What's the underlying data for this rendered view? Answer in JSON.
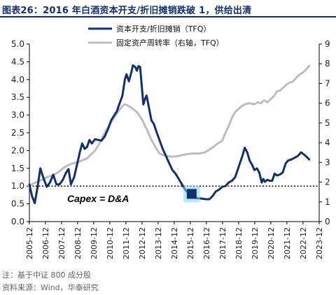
{
  "header": {
    "title": "图表26：2016 年白酒资本开支/折旧摊销跌破 1，供给出清"
  },
  "footer": {
    "note": "注：基于中证 800 成分股",
    "source": "资料来源：Wind，华泰研究"
  },
  "colors": {
    "title": "#12306b",
    "series_left": "#12306b",
    "series_right": "#bdbdbd",
    "highlight_fill": "#12306b",
    "highlight_glow": "#7fd3ff"
  },
  "chart_data": {
    "type": "line",
    "legend_position": "top-right",
    "grid": false,
    "annotation": "Capex = D&A",
    "reference_line": 1.0,
    "ylim_left": [
      0,
      5
    ],
    "ylim_right": [
      0,
      9
    ],
    "yticks_left": [
      "0.0",
      "0.5",
      "1.0",
      "1.5",
      "2.0",
      "2.5",
      "3.0",
      "3.5",
      "4.0",
      "4.5",
      "5.0"
    ],
    "yticks_right": [
      "0",
      "1",
      "2",
      "3",
      "4",
      "5",
      "6",
      "7",
      "8",
      "9"
    ],
    "xticks": [
      "2005-12",
      "2006-12",
      "2007-12",
      "2008-12",
      "2009-12",
      "2010-12",
      "2011-12",
      "2012-12",
      "2013-12",
      "2014-12",
      "2015-12",
      "2016-12",
      "2017-12",
      "2018-12",
      "2019-12",
      "2020-12",
      "2021-12",
      "2022-12",
      "2023-12"
    ],
    "highlight_point": {
      "x": 2016.0,
      "y": 0.78
    },
    "series": [
      {
        "name": "资本开支/折旧摊销（TFQ）",
        "axis": "left",
        "points": [
          [
            2005.92,
            1.05
          ],
          [
            2006.08,
            0.72
          ],
          [
            2006.25,
            0.52
          ],
          [
            2006.42,
            0.95
          ],
          [
            2006.6,
            1.5
          ],
          [
            2006.8,
            1.22
          ],
          [
            2007.0,
            0.98
          ],
          [
            2007.2,
            1.1
          ],
          [
            2007.4,
            1.32
          ],
          [
            2007.6,
            1.05
          ],
          [
            2007.8,
            1.05
          ],
          [
            2008.0,
            1.18
          ],
          [
            2008.2,
            1.38
          ],
          [
            2008.35,
            1.48
          ],
          [
            2008.5,
            1.05
          ],
          [
            2008.7,
            1.25
          ],
          [
            2008.85,
            1.55
          ],
          [
            2009.05,
            1.95
          ],
          [
            2009.2,
            2.2
          ],
          [
            2009.35,
            2.05
          ],
          [
            2009.5,
            2.1
          ],
          [
            2009.65,
            2.3
          ],
          [
            2009.8,
            2.2
          ],
          [
            2010.0,
            2.32
          ],
          [
            2010.2,
            2.3
          ],
          [
            2010.4,
            2.28
          ],
          [
            2010.6,
            2.4
          ],
          [
            2010.8,
            2.6
          ],
          [
            2011.0,
            2.85
          ],
          [
            2011.2,
            3.0
          ],
          [
            2011.35,
            3.1
          ],
          [
            2011.5,
            3.3
          ],
          [
            2011.7,
            3.55
          ],
          [
            2011.85,
            4.0
          ],
          [
            2011.95,
            4.15
          ],
          [
            2012.1,
            3.95
          ],
          [
            2012.25,
            4.2
          ],
          [
            2012.35,
            4.4
          ],
          [
            2012.5,
            4.35
          ],
          [
            2012.6,
            4.25
          ],
          [
            2012.7,
            4.38
          ],
          [
            2012.8,
            4.35
          ],
          [
            2013.0,
            3.3
          ],
          [
            2013.1,
            3.45
          ],
          [
            2013.2,
            3.55
          ],
          [
            2013.35,
            3.2
          ],
          [
            2013.5,
            2.85
          ],
          [
            2013.65,
            2.75
          ],
          [
            2013.8,
            2.55
          ],
          [
            2014.0,
            2.3
          ],
          [
            2014.2,
            2.05
          ],
          [
            2014.4,
            1.85
          ],
          [
            2014.6,
            1.65
          ],
          [
            2014.8,
            1.45
          ],
          [
            2015.0,
            1.35
          ],
          [
            2015.2,
            1.2
          ],
          [
            2015.4,
            1.05
          ],
          [
            2015.6,
            0.9
          ],
          [
            2015.8,
            0.8
          ],
          [
            2016.0,
            0.75
          ],
          [
            2016.3,
            0.66
          ],
          [
            2016.6,
            0.65
          ],
          [
            2016.9,
            0.63
          ],
          [
            2017.1,
            0.63
          ],
          [
            2017.3,
            0.72
          ],
          [
            2017.5,
            0.85
          ],
          [
            2017.7,
            0.9
          ],
          [
            2017.9,
            0.98
          ],
          [
            2018.1,
            1.0
          ],
          [
            2018.3,
            1.1
          ],
          [
            2018.5,
            1.15
          ],
          [
            2018.7,
            1.25
          ],
          [
            2018.85,
            1.45
          ],
          [
            2019.0,
            1.65
          ],
          [
            2019.15,
            1.85
          ],
          [
            2019.3,
            2.08
          ],
          [
            2019.45,
            1.95
          ],
          [
            2019.6,
            1.72
          ],
          [
            2019.75,
            1.6
          ],
          [
            2019.9,
            1.45
          ],
          [
            2020.05,
            1.5
          ],
          [
            2020.2,
            1.38
          ],
          [
            2020.35,
            1.1
          ],
          [
            2020.45,
            1.2
          ],
          [
            2020.55,
            1.12
          ],
          [
            2020.7,
            1.18
          ],
          [
            2020.85,
            1.15
          ],
          [
            2021.0,
            1.15
          ],
          [
            2021.15,
            1.35
          ],
          [
            2021.3,
            1.3
          ],
          [
            2021.5,
            1.33
          ],
          [
            2021.65,
            1.38
          ],
          [
            2021.85,
            1.65
          ],
          [
            2022.0,
            1.72
          ],
          [
            2022.2,
            1.75
          ],
          [
            2022.4,
            1.8
          ],
          [
            2022.6,
            1.85
          ],
          [
            2022.8,
            1.95
          ],
          [
            2023.0,
            1.88
          ],
          [
            2023.15,
            1.82
          ],
          [
            2023.3,
            1.75
          ]
        ]
      },
      {
        "name": "固定资产周转率（右轴，TFQ）",
        "axis": "right",
        "points": [
          [
            2005.92,
            1.8
          ],
          [
            2006.2,
            1.95
          ],
          [
            2006.5,
            2.05
          ],
          [
            2006.8,
            2.15
          ],
          [
            2007.0,
            2.25
          ],
          [
            2007.4,
            2.35
          ],
          [
            2007.8,
            2.55
          ],
          [
            2008.0,
            2.7
          ],
          [
            2008.3,
            2.85
          ],
          [
            2008.6,
            2.95
          ],
          [
            2008.9,
            3.0
          ],
          [
            2009.2,
            3.1
          ],
          [
            2009.5,
            3.2
          ],
          [
            2009.8,
            3.45
          ],
          [
            2010.0,
            3.6
          ],
          [
            2010.3,
            4.0
          ],
          [
            2010.6,
            4.5
          ],
          [
            2010.9,
            4.9
          ],
          [
            2011.2,
            5.3
          ],
          [
            2011.5,
            5.65
          ],
          [
            2011.7,
            5.85
          ],
          [
            2011.85,
            5.95
          ],
          [
            2012.0,
            5.9
          ],
          [
            2012.3,
            5.75
          ],
          [
            2012.6,
            5.55
          ],
          [
            2012.9,
            5.2
          ],
          [
            2013.2,
            4.7
          ],
          [
            2013.5,
            4.15
          ],
          [
            2013.8,
            3.7
          ],
          [
            2014.0,
            3.45
          ],
          [
            2014.3,
            3.35
          ],
          [
            2014.6,
            3.3
          ],
          [
            2015.0,
            3.3
          ],
          [
            2015.3,
            3.35
          ],
          [
            2015.6,
            3.4
          ],
          [
            2016.0,
            3.45
          ],
          [
            2016.4,
            3.45
          ],
          [
            2016.8,
            3.5
          ],
          [
            2017.0,
            3.6
          ],
          [
            2017.3,
            3.75
          ],
          [
            2017.6,
            3.95
          ],
          [
            2017.9,
            4.1
          ],
          [
            2018.1,
            4.5
          ],
          [
            2018.3,
            4.85
          ],
          [
            2018.5,
            5.25
          ],
          [
            2018.7,
            5.55
          ],
          [
            2018.9,
            5.7
          ],
          [
            2019.1,
            5.85
          ],
          [
            2019.3,
            5.95
          ],
          [
            2019.6,
            6.0
          ],
          [
            2019.9,
            5.95
          ],
          [
            2020.1,
            6.05
          ],
          [
            2020.3,
            6.0
          ],
          [
            2020.5,
            6.15
          ],
          [
            2020.7,
            6.05
          ],
          [
            2020.9,
            6.2
          ],
          [
            2021.1,
            6.35
          ],
          [
            2021.3,
            6.6
          ],
          [
            2021.5,
            6.65
          ],
          [
            2021.7,
            6.8
          ],
          [
            2021.9,
            6.95
          ],
          [
            2022.1,
            7.05
          ],
          [
            2022.3,
            7.1
          ],
          [
            2022.5,
            7.3
          ],
          [
            2022.7,
            7.45
          ],
          [
            2022.9,
            7.55
          ],
          [
            2023.1,
            7.7
          ],
          [
            2023.3,
            7.9
          ]
        ]
      }
    ]
  }
}
